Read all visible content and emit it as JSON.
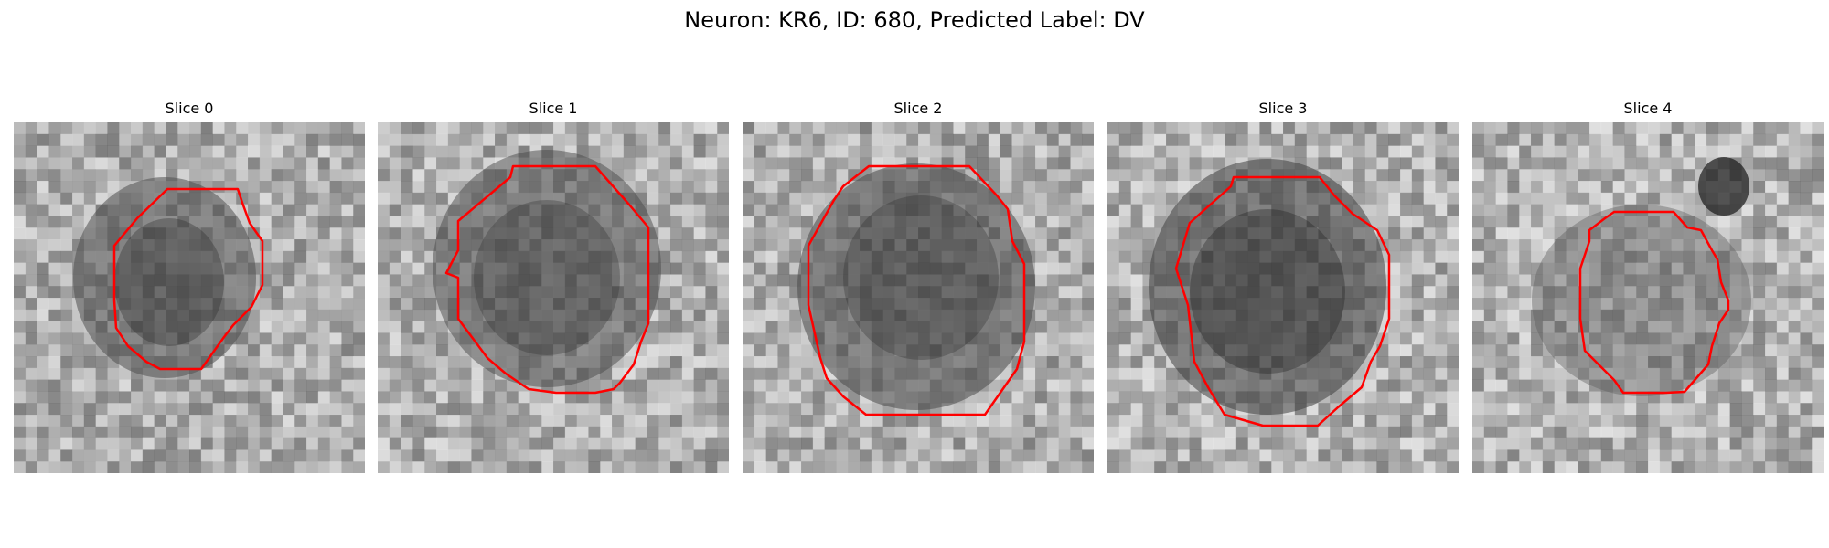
{
  "figure": {
    "title": "Neuron: KR6, ID: 680, Predicted Label: DV"
  },
  "panels": [
    {
      "title": "Slice 0"
    },
    {
      "title": "Slice 1"
    },
    {
      "title": "Slice 2"
    },
    {
      "title": "Slice 3"
    },
    {
      "title": "Slice 4"
    }
  ],
  "colors": {
    "contour": "#ff0000",
    "background": "#ffffff"
  }
}
